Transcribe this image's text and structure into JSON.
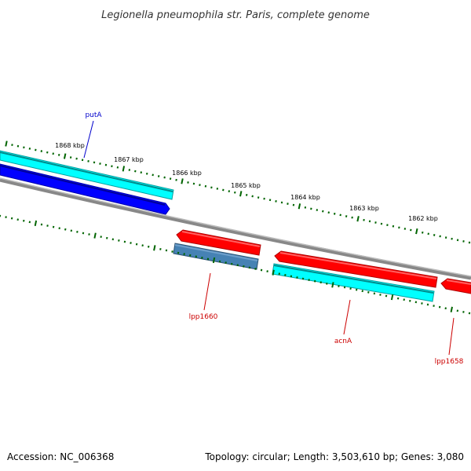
{
  "title": "Legionella pneumophila str. Paris, complete genome",
  "footer": {
    "accession": "Accession: NC_006368",
    "summary": "Topology: circular; Length: 3,503,610 bp; Genes: 3,080"
  },
  "map": {
    "kbp_labels": [
      "1868 kbp",
      "1867 kbp",
      "1866 kbp",
      "1865 kbp",
      "1864 kbp",
      "1863 kbp",
      "1862 kbp"
    ],
    "genes": {
      "putA": "putA",
      "lpp1660": "lpp1660",
      "acnA": "acnA",
      "lpp1658": "lpp1658"
    },
    "colors": {
      "forward_cds": "#0000ff",
      "forward_feature": "#00ffff",
      "reverse_cds": "#ff0000",
      "reverse_feature": "#00ffff",
      "rna": "#4682b4",
      "backbone": "#888888",
      "ticks": "#006400",
      "label_forward": "#0000cc",
      "label_reverse": "#cc0000"
    }
  }
}
